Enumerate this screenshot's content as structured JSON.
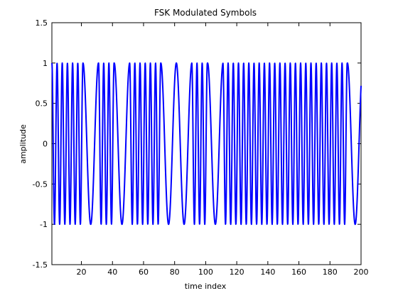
{
  "chart_data": {
    "type": "line",
    "title": "FSK Modulated Symbols",
    "xlabel": "time index",
    "ylabel": "amplitude",
    "xlim": [
      1,
      200
    ],
    "ylim": [
      -1.5,
      1.5
    ],
    "xticks": [
      20,
      40,
      60,
      80,
      100,
      120,
      140,
      160,
      180,
      200
    ],
    "yticks": [
      -1.5,
      -1,
      -0.5,
      0,
      0.5,
      1,
      1.5
    ],
    "ytick_labels": [
      "-1.5",
      "-1",
      "-0.5",
      "0",
      "0.5",
      "1",
      "1.5"
    ],
    "grid": false,
    "series": [
      {
        "color": "#0000ff",
        "line_width": 2,
        "waveform": "cos(phase)",
        "symbol_length": 10,
        "phase_per_sample_by_symbol": [
          1.885,
          1.885,
          0.628,
          1.885,
          0.628,
          1.885,
          1.885,
          0.628,
          0.628,
          1.885,
          0.628,
          1.885,
          1.885,
          1.885,
          1.885,
          1.885,
          1.885,
          1.885,
          1.885,
          0.628
        ],
        "x_start": 1,
        "x_end": 200
      }
    ]
  }
}
